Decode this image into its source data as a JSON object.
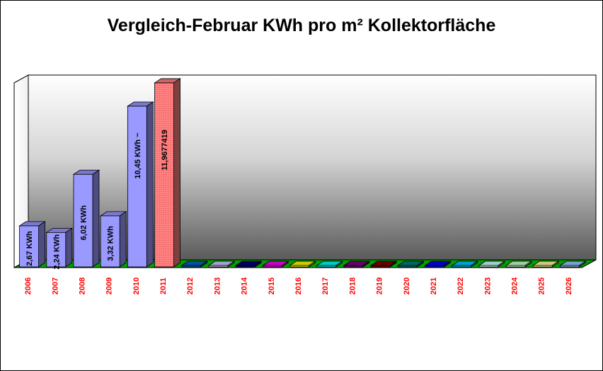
{
  "chart_data": {
    "type": "bar",
    "title": "Vergleich-Februar KWh pro m² Kollektorfläche",
    "xlabel": "",
    "ylabel": "",
    "ylim": [
      0,
      12.2
    ],
    "grid": false,
    "legend": "none",
    "categories": [
      "2006",
      "2007",
      "2008",
      "2009",
      "2010",
      "2011",
      "2012",
      "2013",
      "2014",
      "2015",
      "2016",
      "2017",
      "2018",
      "2019",
      "2020",
      "2021",
      "2022",
      "2023",
      "2024",
      "2025",
      "2026"
    ],
    "values": [
      2.67,
      2.24,
      6.02,
      3.32,
      10.45,
      11.9677419,
      0,
      0,
      0,
      0,
      0,
      0,
      0,
      0,
      0,
      0,
      0,
      0,
      0,
      0,
      0
    ],
    "data_labels": [
      "2,67 KWh",
      "2,24 KWh",
      "6,02 KWh",
      "3,32 KWh",
      "10,45 KWh ~",
      "11,9677419",
      "",
      "",
      "",
      "",
      "",
      "",
      "",
      "",
      "",
      "",
      "",
      "",
      "",
      "",
      ""
    ],
    "colors": [
      "#9999ff",
      "#9999ff",
      "#9999ff",
      "#9999ff",
      "#9999ff",
      "#ff8080",
      "#0066cc",
      "#ccccff",
      "#000080",
      "#ff00ff",
      "#ffff00",
      "#00ffff",
      "#800080",
      "#800000",
      "#008080",
      "#0000ff",
      "#00ccff",
      "#ccffff",
      "#ccffcc",
      "#ffff99",
      "#99ccff"
    ]
  }
}
